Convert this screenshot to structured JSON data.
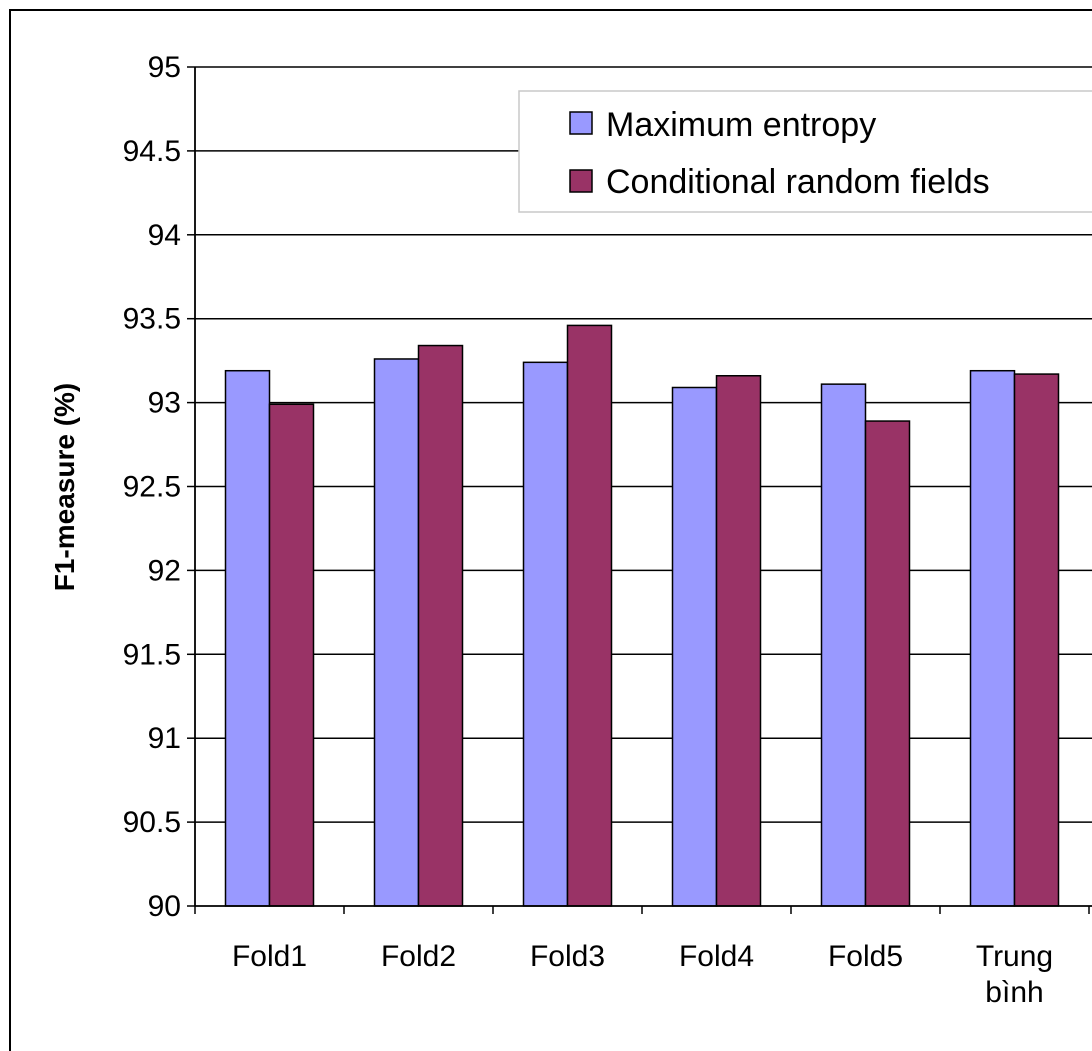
{
  "chart_data": {
    "type": "bar",
    "ylabel": "F1-measure (%)",
    "ylim": [
      90,
      95
    ],
    "yticks": [
      90,
      90.5,
      91,
      91.5,
      92,
      92.5,
      93,
      93.5,
      94,
      94.5,
      95
    ],
    "ytick_labels": [
      "90",
      "90.5",
      "91",
      "91.5",
      "92",
      "92.5",
      "93",
      "93.5",
      "94",
      "94.5",
      "95"
    ],
    "categories": [
      [
        "Fold1"
      ],
      [
        "Fold2"
      ],
      [
        "Fold3"
      ],
      [
        "Fold4"
      ],
      [
        "Fold5"
      ],
      [
        "Trung",
        "bình"
      ]
    ],
    "series": [
      {
        "name": "Maximum entropy",
        "color": "#9999ff",
        "values": [
          93.19,
          93.26,
          93.24,
          93.09,
          93.11,
          93.19
        ]
      },
      {
        "name": "Conditional random fields",
        "color": "#993366",
        "values": [
          92.99,
          93.34,
          93.46,
          93.16,
          92.89,
          93.17
        ]
      }
    ],
    "grid": true,
    "legend_position": "top-right"
  }
}
